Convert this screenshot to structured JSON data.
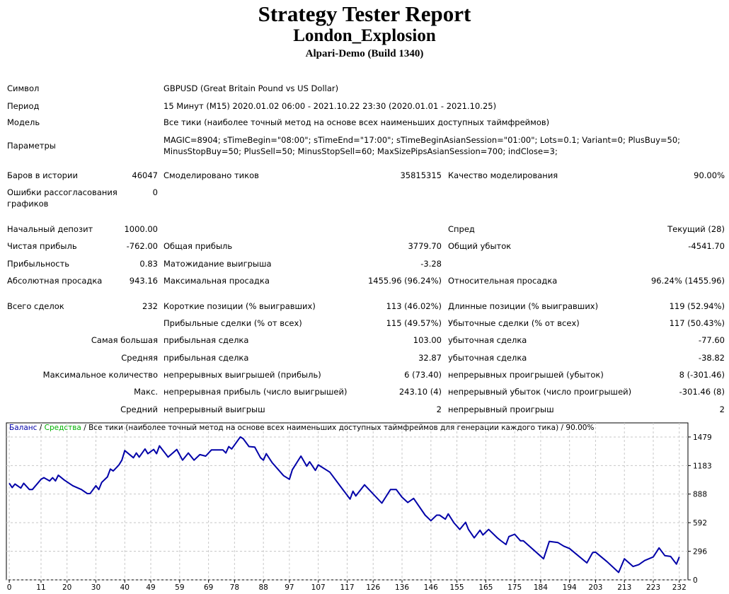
{
  "header": {
    "title": "Strategy Tester Report",
    "expert": "London_Explosion",
    "server": "Alpari-Demo (Build 1340)"
  },
  "rows": [
    {
      "cells": [
        "Символ",
        "",
        "GBPUSD (Great Britain Pound vs US Dollar)",
        "",
        "",
        ""
      ],
      "wide": true
    },
    {
      "cells": [
        "Период",
        "",
        "15 Минут (M15) 2020.01.02 06:00 - 2021.10.22 23:30 (2020.01.01 - 2021.10.25)",
        "",
        "",
        ""
      ],
      "wide": true
    },
    {
      "cells": [
        "Модель",
        "",
        "Все тики (наиболее точный метод на основе всех наименьших доступных таймфреймов)",
        "",
        "",
        ""
      ],
      "wide": true
    },
    {
      "cells": [
        "Параметры",
        "",
        "MAGIC=8904; sTimeBegin=\"08:00\"; sTimeEnd=\"17:00\"; sTimeBeginAsianSession=\"01:00\"; Lots=0.1; Variant=0; PlusBuy=50; MinusStopBuy=50; PlusSell=50; MinusStopSell=60; MaxSizePipsAsianSession=700; indClose=3;",
        "",
        "",
        ""
      ],
      "wide": true
    },
    {
      "cells": [
        "Баров в истории",
        "46047",
        "Смоделировано тиков",
        "35815315",
        "Качество моделирования",
        "90.00%"
      ]
    },
    {
      "cells": [
        "Ошибки рассогласования графиков",
        "0",
        "",
        "",
        "",
        ""
      ]
    },
    {
      "cells": [
        "Начальный депозит",
        "1000.00",
        "",
        "",
        "Спред",
        "Текущий (28)"
      ]
    },
    {
      "cells": [
        "Чистая прибыль",
        "-762.00",
        "Общая прибыль",
        "3779.70",
        "Общий убыток",
        "-4541.70"
      ]
    },
    {
      "cells": [
        "Прибыльность",
        "0.83",
        "Матожидание выигрыша",
        "-3.28",
        "",
        ""
      ]
    },
    {
      "cells": [
        "Абсолютная просадка",
        "943.16",
        "Максимальная просадка",
        "1455.96 (96.24%)",
        "Относительная просадка",
        "96.24% (1455.96)"
      ]
    },
    {
      "cells": [
        "Всего сделок",
        "232",
        "Короткие позиции (% выигравших)",
        "113 (46.02%)",
        "Длинные позиции (% выигравших)",
        "119 (52.94%)"
      ]
    },
    {
      "cells": [
        "",
        "",
        "Прибыльные сделки (% от всех)",
        "115 (49.57%)",
        "Убыточные сделки (% от всех)",
        "117 (50.43%)"
      ]
    },
    {
      "cells": [
        "",
        "Самая большая",
        "прибыльная сделка",
        "103.00",
        "убыточная сделка",
        "-77.60"
      ]
    },
    {
      "cells": [
        "",
        "Средняя",
        "прибыльная сделка",
        "32.87",
        "убыточная сделка",
        "-38.82"
      ]
    },
    {
      "cells": [
        "",
        "Максимальное количество",
        "непрерывных выигрышей (прибыль)",
        "6 (73.40)",
        "непрерывных проигрышей (убыток)",
        "8 (-301.46)"
      ]
    },
    {
      "cells": [
        "",
        "Макс.",
        "непрерывная прибыль (число выигрышей)",
        "243.10 (4)",
        "непрерывный убыток (число проигрышей)",
        "-301.46 (8)"
      ]
    },
    {
      "cells": [
        "",
        "Средний",
        "непрерывный выигрыш",
        "2",
        "непрерывный проигрыш",
        "2"
      ]
    }
  ],
  "chart_legend": {
    "balance": "Баланс",
    "sep1": " / ",
    "equity": "Средства",
    "rest": " / Все тики (наиболее точный метод на основе всех наименьших доступных таймфреймов для генерации каждого тика) / 90.00%"
  },
  "colors": {
    "balance_line": "#0000a8",
    "balance_label": "#0000a8",
    "equity_label": "#00b000",
    "grid": "#c8c8c8"
  },
  "chart_data": {
    "type": "line",
    "xlabel": "",
    "ylabel": "",
    "x_ticks": [
      0,
      11,
      20,
      30,
      40,
      49,
      59,
      69,
      78,
      88,
      97,
      107,
      117,
      126,
      136,
      146,
      155,
      165,
      175,
      184,
      194,
      203,
      213,
      223,
      232
    ],
    "y_ticks": [
      0,
      296,
      592,
      888,
      1183,
      1479
    ],
    "xlim": [
      -1,
      235
    ],
    "ylim": [
      0,
      1625
    ],
    "grid": true,
    "series": [
      {
        "name": "Баланс",
        "points": [
          [
            0,
            1000
          ],
          [
            1,
            955
          ],
          [
            2,
            992
          ],
          [
            4,
            950
          ],
          [
            5,
            1000
          ],
          [
            7,
            935
          ],
          [
            8,
            935
          ],
          [
            11,
            1041
          ],
          [
            12,
            1058
          ],
          [
            14,
            1024
          ],
          [
            15,
            1058
          ],
          [
            16,
            1024
          ],
          [
            17,
            1083
          ],
          [
            19,
            1034
          ],
          [
            22,
            974
          ],
          [
            25,
            935
          ],
          [
            27,
            893
          ],
          [
            28,
            893
          ],
          [
            30,
            974
          ],
          [
            31,
            935
          ],
          [
            32,
            1009
          ],
          [
            34,
            1066
          ],
          [
            35,
            1147
          ],
          [
            36,
            1127
          ],
          [
            38,
            1190
          ],
          [
            39,
            1239
          ],
          [
            40,
            1338
          ],
          [
            43,
            1264
          ],
          [
            44,
            1313
          ],
          [
            45,
            1271
          ],
          [
            47,
            1355
          ],
          [
            48,
            1306
          ],
          [
            50,
            1350
          ],
          [
            51,
            1306
          ],
          [
            52,
            1387
          ],
          [
            55,
            1271
          ],
          [
            58,
            1350
          ],
          [
            60,
            1239
          ],
          [
            62,
            1313
          ],
          [
            64,
            1239
          ],
          [
            66,
            1296
          ],
          [
            68,
            1281
          ],
          [
            70,
            1345
          ],
          [
            74,
            1345
          ],
          [
            75,
            1313
          ],
          [
            76,
            1380
          ],
          [
            77,
            1355
          ],
          [
            80,
            1479
          ],
          [
            81,
            1461
          ],
          [
            83,
            1380
          ],
          [
            85,
            1375
          ],
          [
            87,
            1264
          ],
          [
            88,
            1239
          ],
          [
            89,
            1306
          ],
          [
            91,
            1214
          ],
          [
            95,
            1078
          ],
          [
            97,
            1041
          ],
          [
            98,
            1140
          ],
          [
            101,
            1281
          ],
          [
            103,
            1177
          ],
          [
            104,
            1222
          ],
          [
            106,
            1133
          ],
          [
            107,
            1190
          ],
          [
            111,
            1115
          ],
          [
            115,
            955
          ],
          [
            118,
            836
          ],
          [
            119,
            917
          ],
          [
            120,
            868
          ],
          [
            123,
            984
          ],
          [
            129,
            794
          ],
          [
            132,
            935
          ],
          [
            134,
            935
          ],
          [
            136,
            856
          ],
          [
            138,
            801
          ],
          [
            140,
            843
          ],
          [
            144,
            670
          ],
          [
            146,
            613
          ],
          [
            148,
            670
          ],
          [
            149,
            670
          ],
          [
            151,
            628
          ],
          [
            152,
            683
          ],
          [
            154,
            589
          ],
          [
            156,
            522
          ],
          [
            158,
            596
          ],
          [
            159,
            522
          ],
          [
            161,
            435
          ],
          [
            163,
            514
          ],
          [
            164,
            465
          ],
          [
            166,
            522
          ],
          [
            169,
            435
          ],
          [
            170,
            410
          ],
          [
            172,
            366
          ],
          [
            173,
            448
          ],
          [
            175,
            472
          ],
          [
            177,
            405
          ],
          [
            178,
            405
          ],
          [
            185,
            218
          ],
          [
            187,
            398
          ],
          [
            190,
            386
          ],
          [
            192,
            349
          ],
          [
            194,
            324
          ],
          [
            197,
            250
          ],
          [
            200,
            176
          ],
          [
            202,
            282
          ],
          [
            203,
            287
          ],
          [
            207,
            188
          ],
          [
            211,
            77
          ],
          [
            213,
            218
          ],
          [
            216,
            138
          ],
          [
            218,
            158
          ],
          [
            220,
            200
          ],
          [
            223,
            237
          ],
          [
            225,
            331
          ],
          [
            227,
            250
          ],
          [
            229,
            242
          ],
          [
            231,
            163
          ],
          [
            232,
            238
          ]
        ]
      }
    ]
  }
}
